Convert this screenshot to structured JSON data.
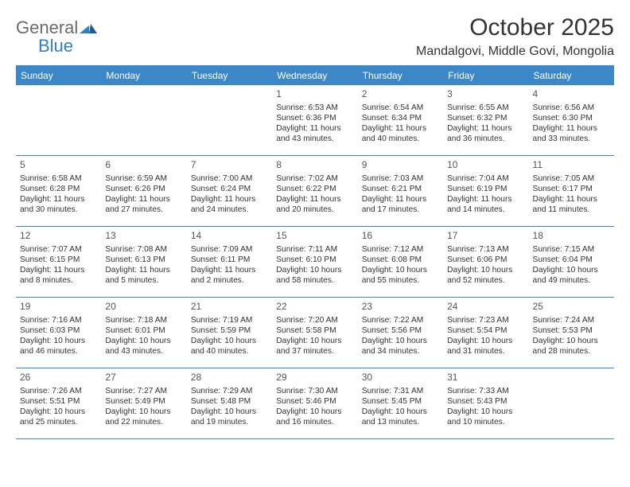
{
  "brand": {
    "word1": "General",
    "word2": "Blue"
  },
  "title": "October 2025",
  "location": "Mandalgovi, Middle Govi, Mongolia",
  "colors": {
    "header_bar": "#3b87c8",
    "header_text": "#ffffff",
    "rule": "#3b87c8",
    "body_text": "#333333",
    "logo_gray": "#6b6b6b",
    "logo_blue": "#2f7fc2",
    "background": "#ffffff"
  },
  "fonts": {
    "title_size_pt": 22,
    "location_size_pt": 12,
    "dow_size_pt": 9,
    "body_size_pt": 8
  },
  "days_of_week": [
    "Sunday",
    "Monday",
    "Tuesday",
    "Wednesday",
    "Thursday",
    "Friday",
    "Saturday"
  ],
  "weeks": [
    [
      null,
      null,
      null,
      {
        "n": "1",
        "sunrise": "Sunrise: 6:53 AM",
        "sunset": "Sunset: 6:36 PM",
        "daylight1": "Daylight: 11 hours",
        "daylight2": "and 43 minutes."
      },
      {
        "n": "2",
        "sunrise": "Sunrise: 6:54 AM",
        "sunset": "Sunset: 6:34 PM",
        "daylight1": "Daylight: 11 hours",
        "daylight2": "and 40 minutes."
      },
      {
        "n": "3",
        "sunrise": "Sunrise: 6:55 AM",
        "sunset": "Sunset: 6:32 PM",
        "daylight1": "Daylight: 11 hours",
        "daylight2": "and 36 minutes."
      },
      {
        "n": "4",
        "sunrise": "Sunrise: 6:56 AM",
        "sunset": "Sunset: 6:30 PM",
        "daylight1": "Daylight: 11 hours",
        "daylight2": "and 33 minutes."
      }
    ],
    [
      {
        "n": "5",
        "sunrise": "Sunrise: 6:58 AM",
        "sunset": "Sunset: 6:28 PM",
        "daylight1": "Daylight: 11 hours",
        "daylight2": "and 30 minutes."
      },
      {
        "n": "6",
        "sunrise": "Sunrise: 6:59 AM",
        "sunset": "Sunset: 6:26 PM",
        "daylight1": "Daylight: 11 hours",
        "daylight2": "and 27 minutes."
      },
      {
        "n": "7",
        "sunrise": "Sunrise: 7:00 AM",
        "sunset": "Sunset: 6:24 PM",
        "daylight1": "Daylight: 11 hours",
        "daylight2": "and 24 minutes."
      },
      {
        "n": "8",
        "sunrise": "Sunrise: 7:02 AM",
        "sunset": "Sunset: 6:22 PM",
        "daylight1": "Daylight: 11 hours",
        "daylight2": "and 20 minutes."
      },
      {
        "n": "9",
        "sunrise": "Sunrise: 7:03 AM",
        "sunset": "Sunset: 6:21 PM",
        "daylight1": "Daylight: 11 hours",
        "daylight2": "and 17 minutes."
      },
      {
        "n": "10",
        "sunrise": "Sunrise: 7:04 AM",
        "sunset": "Sunset: 6:19 PM",
        "daylight1": "Daylight: 11 hours",
        "daylight2": "and 14 minutes."
      },
      {
        "n": "11",
        "sunrise": "Sunrise: 7:05 AM",
        "sunset": "Sunset: 6:17 PM",
        "daylight1": "Daylight: 11 hours",
        "daylight2": "and 11 minutes."
      }
    ],
    [
      {
        "n": "12",
        "sunrise": "Sunrise: 7:07 AM",
        "sunset": "Sunset: 6:15 PM",
        "daylight1": "Daylight: 11 hours",
        "daylight2": "and 8 minutes."
      },
      {
        "n": "13",
        "sunrise": "Sunrise: 7:08 AM",
        "sunset": "Sunset: 6:13 PM",
        "daylight1": "Daylight: 11 hours",
        "daylight2": "and 5 minutes."
      },
      {
        "n": "14",
        "sunrise": "Sunrise: 7:09 AM",
        "sunset": "Sunset: 6:11 PM",
        "daylight1": "Daylight: 11 hours",
        "daylight2": "and 2 minutes."
      },
      {
        "n": "15",
        "sunrise": "Sunrise: 7:11 AM",
        "sunset": "Sunset: 6:10 PM",
        "daylight1": "Daylight: 10 hours",
        "daylight2": "and 58 minutes."
      },
      {
        "n": "16",
        "sunrise": "Sunrise: 7:12 AM",
        "sunset": "Sunset: 6:08 PM",
        "daylight1": "Daylight: 10 hours",
        "daylight2": "and 55 minutes."
      },
      {
        "n": "17",
        "sunrise": "Sunrise: 7:13 AM",
        "sunset": "Sunset: 6:06 PM",
        "daylight1": "Daylight: 10 hours",
        "daylight2": "and 52 minutes."
      },
      {
        "n": "18",
        "sunrise": "Sunrise: 7:15 AM",
        "sunset": "Sunset: 6:04 PM",
        "daylight1": "Daylight: 10 hours",
        "daylight2": "and 49 minutes."
      }
    ],
    [
      {
        "n": "19",
        "sunrise": "Sunrise: 7:16 AM",
        "sunset": "Sunset: 6:03 PM",
        "daylight1": "Daylight: 10 hours",
        "daylight2": "and 46 minutes."
      },
      {
        "n": "20",
        "sunrise": "Sunrise: 7:18 AM",
        "sunset": "Sunset: 6:01 PM",
        "daylight1": "Daylight: 10 hours",
        "daylight2": "and 43 minutes."
      },
      {
        "n": "21",
        "sunrise": "Sunrise: 7:19 AM",
        "sunset": "Sunset: 5:59 PM",
        "daylight1": "Daylight: 10 hours",
        "daylight2": "and 40 minutes."
      },
      {
        "n": "22",
        "sunrise": "Sunrise: 7:20 AM",
        "sunset": "Sunset: 5:58 PM",
        "daylight1": "Daylight: 10 hours",
        "daylight2": "and 37 minutes."
      },
      {
        "n": "23",
        "sunrise": "Sunrise: 7:22 AM",
        "sunset": "Sunset: 5:56 PM",
        "daylight1": "Daylight: 10 hours",
        "daylight2": "and 34 minutes."
      },
      {
        "n": "24",
        "sunrise": "Sunrise: 7:23 AM",
        "sunset": "Sunset: 5:54 PM",
        "daylight1": "Daylight: 10 hours",
        "daylight2": "and 31 minutes."
      },
      {
        "n": "25",
        "sunrise": "Sunrise: 7:24 AM",
        "sunset": "Sunset: 5:53 PM",
        "daylight1": "Daylight: 10 hours",
        "daylight2": "and 28 minutes."
      }
    ],
    [
      {
        "n": "26",
        "sunrise": "Sunrise: 7:26 AM",
        "sunset": "Sunset: 5:51 PM",
        "daylight1": "Daylight: 10 hours",
        "daylight2": "and 25 minutes."
      },
      {
        "n": "27",
        "sunrise": "Sunrise: 7:27 AM",
        "sunset": "Sunset: 5:49 PM",
        "daylight1": "Daylight: 10 hours",
        "daylight2": "and 22 minutes."
      },
      {
        "n": "28",
        "sunrise": "Sunrise: 7:29 AM",
        "sunset": "Sunset: 5:48 PM",
        "daylight1": "Daylight: 10 hours",
        "daylight2": "and 19 minutes."
      },
      {
        "n": "29",
        "sunrise": "Sunrise: 7:30 AM",
        "sunset": "Sunset: 5:46 PM",
        "daylight1": "Daylight: 10 hours",
        "daylight2": "and 16 minutes."
      },
      {
        "n": "30",
        "sunrise": "Sunrise: 7:31 AM",
        "sunset": "Sunset: 5:45 PM",
        "daylight1": "Daylight: 10 hours",
        "daylight2": "and 13 minutes."
      },
      {
        "n": "31",
        "sunrise": "Sunrise: 7:33 AM",
        "sunset": "Sunset: 5:43 PM",
        "daylight1": "Daylight: 10 hours",
        "daylight2": "and 10 minutes."
      },
      null
    ]
  ]
}
